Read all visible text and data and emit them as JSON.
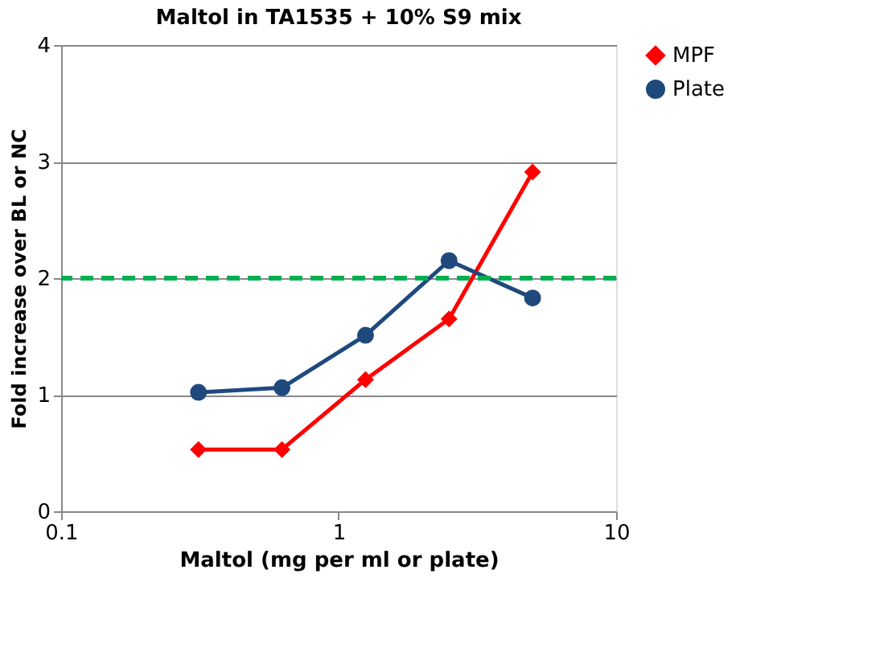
{
  "chart_data": {
    "type": "line",
    "title": "Maltol in TA1535 + 10% S9 mix",
    "xlabel": "Maltol (mg per ml or plate)",
    "ylabel": "Fold increase over BL or NC",
    "x": [
      0.3125,
      0.625,
      1.25,
      2.5,
      5
    ],
    "series": [
      {
        "name": "MPF",
        "color": "#ff0000",
        "marker": "diamond",
        "values": [
          0.53,
          0.53,
          1.13,
          1.65,
          2.91
        ]
      },
      {
        "name": "Plate",
        "color": "#1f497d",
        "marker": "circle",
        "values": [
          1.02,
          1.06,
          1.51,
          2.15,
          1.83
        ]
      }
    ],
    "log": "x",
    "xlim": [
      0.1,
      10
    ],
    "xticks": [
      0.1,
      1,
      10
    ],
    "ylim": [
      0,
      4
    ],
    "yticks": [
      0,
      1,
      2,
      3,
      4
    ],
    "grid": "y",
    "legend": "right",
    "line_style": "solid",
    "ref_lines": [
      {
        "axis": "y",
        "value": 2,
        "color": "#00b050",
        "line_style": "dashed"
      }
    ]
  }
}
